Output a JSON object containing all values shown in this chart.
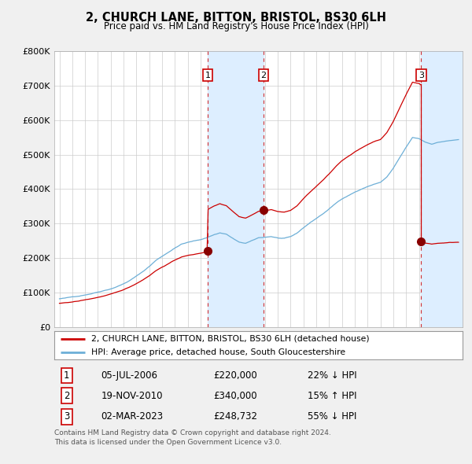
{
  "title": "2, CHURCH LANE, BITTON, BRISTOL, BS30 6LH",
  "subtitle": "Price paid vs. HM Land Registry's House Price Index (HPI)",
  "legend_line1": "2, CHURCH LANE, BITTON, BRISTOL, BS30 6LH (detached house)",
  "legend_line2": "HPI: Average price, detached house, South Gloucestershire",
  "table_rows": [
    {
      "num": "1",
      "date": "05-JUL-2006",
      "price": "£220,000",
      "hpi": "22% ↓ HPI"
    },
    {
      "num": "2",
      "date": "19-NOV-2010",
      "price": "£340,000",
      "hpi": "15% ↑ HPI"
    },
    {
      "num": "3",
      "date": "02-MAR-2023",
      "price": "£248,732",
      "hpi": "55% ↓ HPI"
    }
  ],
  "footer": "Contains HM Land Registry data © Crown copyright and database right 2024.\nThis data is licensed under the Open Government Licence v3.0.",
  "hpi_line_color": "#6dafd7",
  "price_line_color": "#cc0000",
  "dot_color": "#880000",
  "shade_color": "#ddeeff",
  "background_color": "#f0f0f0",
  "plot_bg_color": "#ffffff",
  "grid_color": "#cccccc",
  "y_ticks": [
    0,
    100000,
    200000,
    300000,
    400000,
    500000,
    600000,
    700000,
    800000
  ],
  "t1": 2006.54,
  "t2": 2010.89,
  "t3": 2023.17,
  "sale1_price": 220000,
  "sale2_price": 340000,
  "sale3_price": 248732
}
